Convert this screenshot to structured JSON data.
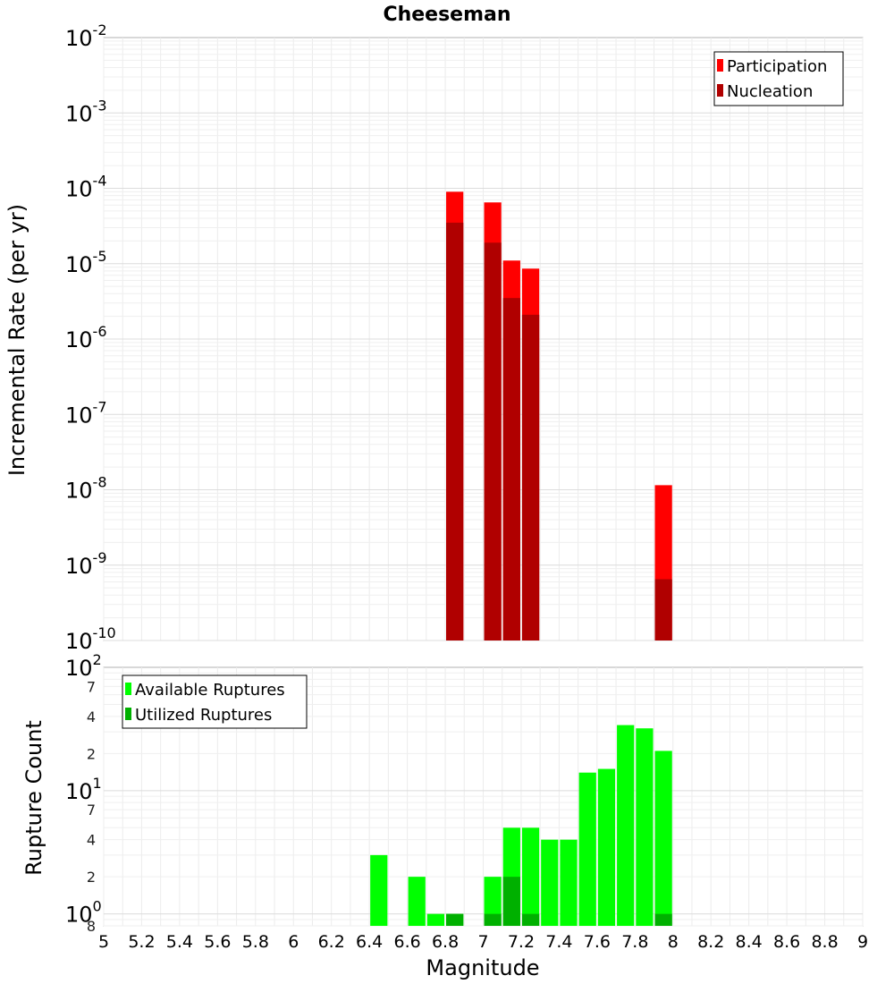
{
  "chart_data": [
    {
      "type": "bar",
      "title": "Cheeseman",
      "xlabel": "Magnitude",
      "ylabel": "Incremental Rate (per yr)",
      "xlim": [
        5,
        9
      ],
      "ylim": [
        1e-10,
        0.01
      ],
      "yscale": "log",
      "grid": true,
      "legend_position": "top-right",
      "x_ticks": [
        "5",
        "5.2",
        "5.4",
        "5.6",
        "5.8",
        "6",
        "6.2",
        "6.4",
        "6.6",
        "6.8",
        "7",
        "7.2",
        "7.4",
        "7.6",
        "7.8",
        "8",
        "8.2",
        "8.4",
        "8.6",
        "8.8",
        "9"
      ],
      "y_ticks": [
        {
          "base": "10",
          "exp": "-10"
        },
        {
          "base": "10",
          "exp": "-9"
        },
        {
          "base": "10",
          "exp": "-8"
        },
        {
          "base": "10",
          "exp": "-7"
        },
        {
          "base": "10",
          "exp": "-6"
        },
        {
          "base": "10",
          "exp": "-5"
        },
        {
          "base": "10",
          "exp": "-4"
        },
        {
          "base": "10",
          "exp": "-3"
        },
        {
          "base": "10",
          "exp": "-2"
        }
      ],
      "series": [
        {
          "name": "Participation",
          "color": "#ff0000",
          "points": [
            {
              "x": 6.85,
              "y": 9e-05
            },
            {
              "x": 7.05,
              "y": 6.5e-05
            },
            {
              "x": 7.15,
              "y": 1.1e-05
            },
            {
              "x": 7.25,
              "y": 8.6e-06
            },
            {
              "x": 7.95,
              "y": 1.15e-08
            }
          ]
        },
        {
          "name": "Nucleation",
          "color": "#b00000",
          "points": [
            {
              "x": 6.85,
              "y": 3.5e-05
            },
            {
              "x": 7.05,
              "y": 1.9e-05
            },
            {
              "x": 7.15,
              "y": 3.5e-06
            },
            {
              "x": 7.25,
              "y": 2.1e-06
            },
            {
              "x": 7.95,
              "y": 6.5e-10
            }
          ]
        }
      ]
    },
    {
      "type": "bar",
      "xlabel": "Magnitude",
      "ylabel": "Rupture Count",
      "xlim": [
        5,
        9
      ],
      "ylim": [
        0.8,
        100
      ],
      "yscale": "log",
      "grid": true,
      "legend_position": "top-left",
      "x_ticks": [
        "5",
        "5.2",
        "5.4",
        "5.6",
        "5.8",
        "6",
        "6.2",
        "6.4",
        "6.6",
        "6.8",
        "7",
        "7.2",
        "7.4",
        "7.6",
        "7.8",
        "8",
        "8.2",
        "8.4",
        "8.6",
        "8.8",
        "9"
      ],
      "y_major_ticks": [
        {
          "value": 1,
          "base": "10",
          "exp": "0"
        },
        {
          "value": 10,
          "base": "10",
          "exp": "1"
        },
        {
          "value": 100,
          "base": "10",
          "exp": "2"
        }
      ],
      "y_minor_ticks": [
        {
          "value": 0.8,
          "label": "8"
        },
        {
          "value": 2,
          "label": "2"
        },
        {
          "value": 4,
          "label": "4"
        },
        {
          "value": 7,
          "label": "7"
        },
        {
          "value": 20,
          "label": "2"
        },
        {
          "value": 40,
          "label": "4"
        },
        {
          "value": 70,
          "label": "7"
        }
      ],
      "series": [
        {
          "name": "Available Ruptures",
          "color": "#00ff00",
          "points": [
            {
              "x": 6.45,
              "y": 3
            },
            {
              "x": 6.65,
              "y": 2
            },
            {
              "x": 6.75,
              "y": 1
            },
            {
              "x": 6.85,
              "y": 1
            },
            {
              "x": 7.05,
              "y": 2
            },
            {
              "x": 7.15,
              "y": 5
            },
            {
              "x": 7.25,
              "y": 5
            },
            {
              "x": 7.35,
              "y": 4
            },
            {
              "x": 7.45,
              "y": 4
            },
            {
              "x": 7.55,
              "y": 14
            },
            {
              "x": 7.65,
              "y": 15
            },
            {
              "x": 7.75,
              "y": 34
            },
            {
              "x": 7.85,
              "y": 32
            },
            {
              "x": 7.95,
              "y": 21
            }
          ]
        },
        {
          "name": "Utilized Ruptures",
          "color": "#00b000",
          "points": [
            {
              "x": 6.85,
              "y": 1
            },
            {
              "x": 7.05,
              "y": 1
            },
            {
              "x": 7.15,
              "y": 2
            },
            {
              "x": 7.25,
              "y": 1
            },
            {
              "x": 7.95,
              "y": 1
            }
          ]
        }
      ]
    }
  ]
}
